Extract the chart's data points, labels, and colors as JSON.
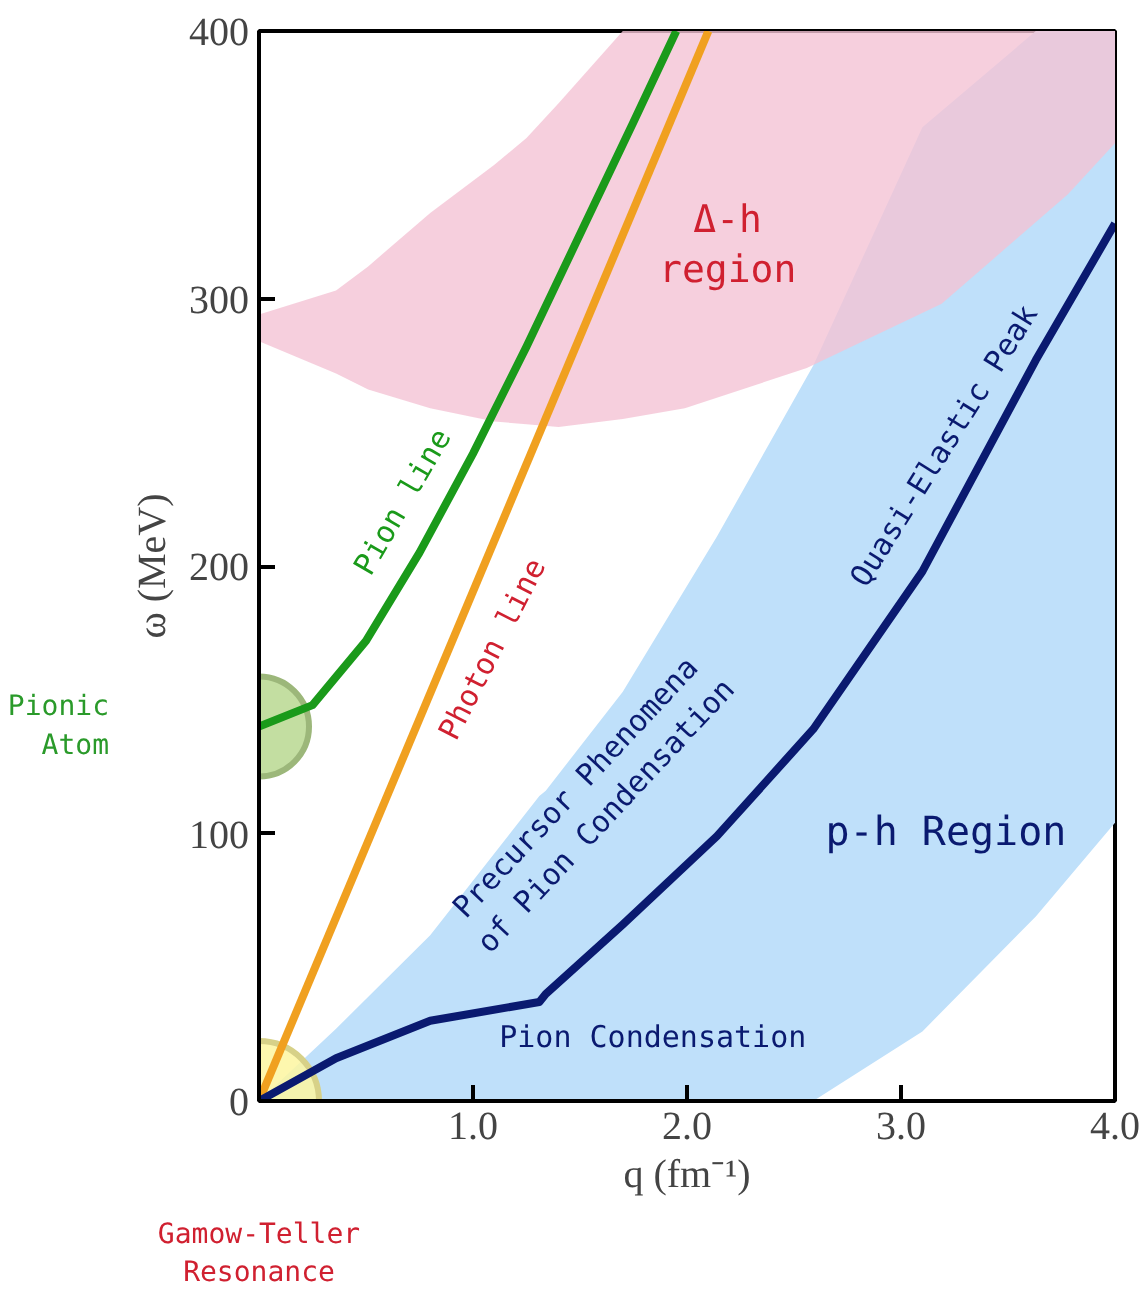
{
  "chart_data": {
    "type": "line",
    "xlabel": "q (fm⁻¹)",
    "ylabel": "ω (MeV)",
    "xlim": [
      0,
      4.0
    ],
    "ylim": [
      0,
      400
    ],
    "xticks": [
      {
        "value": 1,
        "label": "1.0"
      },
      {
        "value": 2,
        "label": "2.0"
      },
      {
        "value": 3,
        "label": "3.0"
      },
      {
        "value": 4,
        "label": "4.0"
      }
    ],
    "yticks": [
      0,
      100,
      200,
      300,
      400
    ],
    "series": [
      {
        "color": "#f4c3d4",
        "x": [
          0,
          0.36,
          0.51,
          0.8,
          1.1,
          1.25,
          1.4,
          1.7,
          1.99,
          2.56,
          3.19,
          3.78,
          4.0
        ],
        "values": [
          null,
          null,
          null,
          null,
          null,
          null,
          null,
          null,
          null,
          null,
          null,
          null,
          null
        ],
        "upper": [
          294,
          303,
          312,
          332,
          350,
          360,
          373,
          400,
          400,
          400,
          400,
          400,
          400
        ],
        "lower": [
          284,
          272,
          266,
          259,
          254,
          253,
          252,
          255,
          259,
          274,
          298,
          339,
          358
        ]
      },
      {
        "color": "#1a9a1a",
        "x": [
          0,
          0.25,
          0.5,
          0.75,
          1.0,
          1.25,
          1.5,
          1.75,
          1.95
        ],
        "values": [
          140,
          148,
          172,
          205,
          242,
          282,
          324,
          366,
          400
        ]
      },
      {
        "color": "#f0a020",
        "x": [
          0,
          2.1
        ],
        "values": [
          0,
          400
        ]
      },
      {
        "color": "#0a1a70",
        "x": [
          0,
          0.36,
          0.8,
          1.31,
          1.34,
          1.7,
          2.14,
          2.59,
          3.1,
          3.63,
          4.0
        ],
        "values": [
          0,
          16,
          30,
          37,
          40,
          66,
          99,
          139,
          198,
          277,
          328
        ],
        "upper": [
          0,
          27,
          62,
          114,
          116,
          153,
          211,
          275,
          364,
          400,
          400
        ],
        "lower": [
          0,
          0,
          0,
          0,
          0,
          0,
          0,
          0,
          26,
          69,
          104
        ]
      },
      {
        "type": "scatter",
        "marker": "circle",
        "color": "#b8d890",
        "x": [
          0
        ],
        "values": [
          140
        ]
      },
      {
        "type": "scatter",
        "marker": "circle",
        "color": "#fdf6a0",
        "x": [
          0
        ],
        "values": [
          0
        ]
      }
    ],
    "annotations": [
      "Pion line",
      "Photon line",
      "Δ-h\nregion",
      "Quasi-Elastic Peak",
      "Precursor Phenomena\nof Pion Condensation",
      "p-h Region",
      "Pion Condensation",
      "Pionic Atom",
      "Gamow-Teller Resonance"
    ]
  }
}
